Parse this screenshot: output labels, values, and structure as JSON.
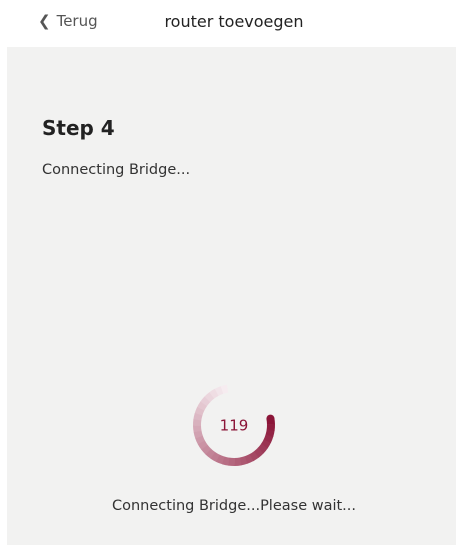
{
  "header": {
    "back": "Terug",
    "title": "router toevoegen"
  },
  "step": {
    "title": "Step 4",
    "subtitle": "Connecting Bridge..."
  },
  "progress": {
    "countdown": "119"
  },
  "status": "Connecting Bridge...Please wait..."
}
